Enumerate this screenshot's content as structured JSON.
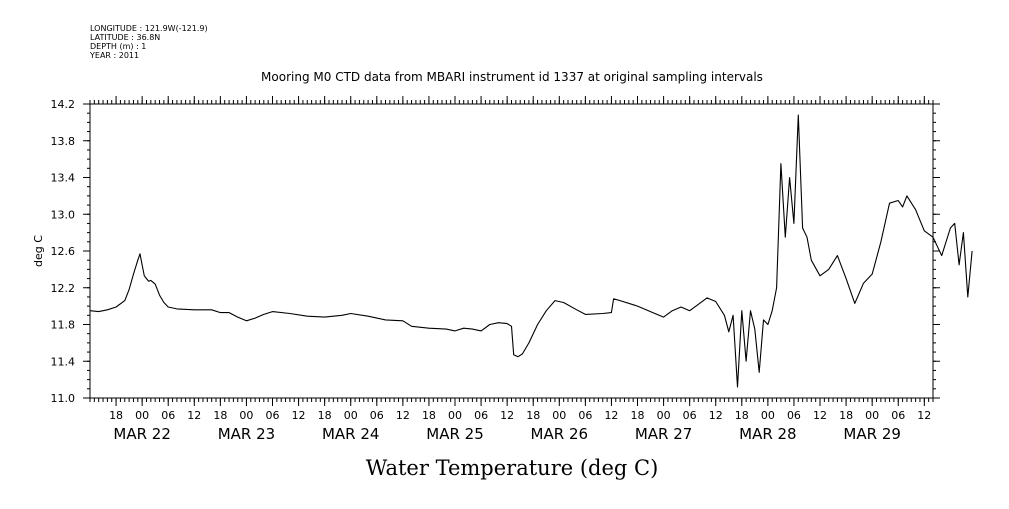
{
  "header": {
    "meta_lines": [
      "LONGITUDE : 121.9W(-121.9)",
      "LATITUDE : 36.8N",
      "DEPTH (m) : 1",
      "YEAR : 2011"
    ],
    "title": "Mooring M0 CTD data from MBARI instrument id 1337 at original sampling intervals"
  },
  "chart_data": {
    "type": "line",
    "title": "Mooring M0 CTD data from MBARI instrument id 1337 at original sampling intervals",
    "xlabel": "Water Temperature (deg C)",
    "ylabel": "deg C",
    "x_unit": "date-hour (2011-03)",
    "xlim": [
      "2011-03-21T12:00",
      "2011-03-29T14:00"
    ],
    "ylim": [
      11.0,
      14.2
    ],
    "y_ticks": [
      "11.0",
      "11.4",
      "11.8",
      "12.2",
      "12.6",
      "13.0",
      "13.4",
      "13.8",
      "14.2"
    ],
    "x_hour_ticks": [
      {
        "t": "2011-03-21T18:00",
        "label": "18"
      },
      {
        "t": "2011-03-22T00:00",
        "label": "00"
      },
      {
        "t": "2011-03-22T06:00",
        "label": "06"
      },
      {
        "t": "2011-03-22T12:00",
        "label": "12"
      },
      {
        "t": "2011-03-22T18:00",
        "label": "18"
      },
      {
        "t": "2011-03-23T00:00",
        "label": "00"
      },
      {
        "t": "2011-03-23T06:00",
        "label": "06"
      },
      {
        "t": "2011-03-23T12:00",
        "label": "12"
      },
      {
        "t": "2011-03-23T18:00",
        "label": "18"
      },
      {
        "t": "2011-03-24T00:00",
        "label": "00"
      },
      {
        "t": "2011-03-24T06:00",
        "label": "06"
      },
      {
        "t": "2011-03-24T12:00",
        "label": "12"
      },
      {
        "t": "2011-03-24T18:00",
        "label": "18"
      },
      {
        "t": "2011-03-25T00:00",
        "label": "00"
      },
      {
        "t": "2011-03-25T06:00",
        "label": "06"
      },
      {
        "t": "2011-03-25T12:00",
        "label": "12"
      },
      {
        "t": "2011-03-25T18:00",
        "label": "18"
      },
      {
        "t": "2011-03-26T00:00",
        "label": "00"
      },
      {
        "t": "2011-03-26T06:00",
        "label": "06"
      },
      {
        "t": "2011-03-26T12:00",
        "label": "12"
      },
      {
        "t": "2011-03-26T18:00",
        "label": "18"
      },
      {
        "t": "2011-03-27T00:00",
        "label": "00"
      },
      {
        "t": "2011-03-27T06:00",
        "label": "06"
      },
      {
        "t": "2011-03-27T12:00",
        "label": "12"
      },
      {
        "t": "2011-03-27T18:00",
        "label": "18"
      },
      {
        "t": "2011-03-28T00:00",
        "label": "00"
      },
      {
        "t": "2011-03-28T06:00",
        "label": "06"
      },
      {
        "t": "2011-03-28T12:00",
        "label": "12"
      },
      {
        "t": "2011-03-28T18:00",
        "label": "18"
      },
      {
        "t": "2011-03-29T00:00",
        "label": "00"
      },
      {
        "t": "2011-03-29T06:00",
        "label": "06"
      },
      {
        "t": "2011-03-29T12:00",
        "label": "12"
      }
    ],
    "x_day_labels": [
      {
        "t": "2011-03-22T00:00",
        "label": "MAR 22"
      },
      {
        "t": "2011-03-23T00:00",
        "label": "MAR 23"
      },
      {
        "t": "2011-03-24T00:00",
        "label": "MAR 24"
      },
      {
        "t": "2011-03-25T00:00",
        "label": "MAR 25"
      },
      {
        "t": "2011-03-26T00:00",
        "label": "MAR 26"
      },
      {
        "t": "2011-03-27T00:00",
        "label": "MAR 27"
      },
      {
        "t": "2011-03-28T00:00",
        "label": "MAR 28"
      },
      {
        "t": "2011-03-29T00:00",
        "label": "MAR 29"
      }
    ],
    "series": [
      {
        "color": "#000000",
        "points": [
          [
            "2011-03-21T12:00",
            11.95
          ],
          [
            "2011-03-21T14:00",
            11.94
          ],
          [
            "2011-03-21T16:00",
            11.96
          ],
          [
            "2011-03-21T18:00",
            11.99
          ],
          [
            "2011-03-21T20:00",
            12.06
          ],
          [
            "2011-03-21T21:00",
            12.18
          ],
          [
            "2011-03-21T22:00",
            12.35
          ],
          [
            "2011-03-21T23:00",
            12.5
          ],
          [
            "2011-03-21T23:30",
            12.57
          ],
          [
            "2011-03-22T00:00",
            12.45
          ],
          [
            "2011-03-22T00:30",
            12.33
          ],
          [
            "2011-03-22T01:00",
            12.3
          ],
          [
            "2011-03-22T01:30",
            12.27
          ],
          [
            "2011-03-22T02:00",
            12.28
          ],
          [
            "2011-03-22T03:00",
            12.24
          ],
          [
            "2011-03-22T04:00",
            12.12
          ],
          [
            "2011-03-22T05:00",
            12.04
          ],
          [
            "2011-03-22T06:00",
            11.99
          ],
          [
            "2011-03-22T08:00",
            11.97
          ],
          [
            "2011-03-22T12:00",
            11.96
          ],
          [
            "2011-03-22T16:00",
            11.96
          ],
          [
            "2011-03-22T18:00",
            11.93
          ],
          [
            "2011-03-22T20:00",
            11.93
          ],
          [
            "2011-03-22T22:00",
            11.88
          ],
          [
            "2011-03-23T00:00",
            11.84
          ],
          [
            "2011-03-23T02:00",
            11.87
          ],
          [
            "2011-03-23T04:00",
            11.91
          ],
          [
            "2011-03-23T06:00",
            11.94
          ],
          [
            "2011-03-23T10:00",
            11.92
          ],
          [
            "2011-03-23T14:00",
            11.89
          ],
          [
            "2011-03-23T18:00",
            11.88
          ],
          [
            "2011-03-23T22:00",
            11.9
          ],
          [
            "2011-03-24T00:00",
            11.92
          ],
          [
            "2011-03-24T04:00",
            11.89
          ],
          [
            "2011-03-24T08:00",
            11.85
          ],
          [
            "2011-03-24T12:00",
            11.84
          ],
          [
            "2011-03-24T14:00",
            11.78
          ],
          [
            "2011-03-24T18:00",
            11.76
          ],
          [
            "2011-03-24T22:00",
            11.75
          ],
          [
            "2011-03-25T00:00",
            11.73
          ],
          [
            "2011-03-25T02:00",
            11.76
          ],
          [
            "2011-03-25T04:00",
            11.75
          ],
          [
            "2011-03-25T06:00",
            11.73
          ],
          [
            "2011-03-25T08:00",
            11.8
          ],
          [
            "2011-03-25T10:00",
            11.82
          ],
          [
            "2011-03-25T12:00",
            11.81
          ],
          [
            "2011-03-25T13:00",
            11.78
          ],
          [
            "2011-03-25T13:30",
            11.47
          ],
          [
            "2011-03-25T14:30",
            11.45
          ],
          [
            "2011-03-25T15:30",
            11.48
          ],
          [
            "2011-03-25T17:00",
            11.6
          ],
          [
            "2011-03-25T19:00",
            11.8
          ],
          [
            "2011-03-25T21:00",
            11.95
          ],
          [
            "2011-03-25T23:00",
            12.06
          ],
          [
            "2011-03-26T01:00",
            12.04
          ],
          [
            "2011-03-26T04:00",
            11.96
          ],
          [
            "2011-03-26T06:00",
            11.91
          ],
          [
            "2011-03-26T10:00",
            11.92
          ],
          [
            "2011-03-26T12:00",
            11.93
          ],
          [
            "2011-03-26T12:30",
            12.08
          ],
          [
            "2011-03-26T14:00",
            12.06
          ],
          [
            "2011-03-26T18:00",
            12.0
          ],
          [
            "2011-03-26T22:00",
            11.92
          ],
          [
            "2011-03-27T00:00",
            11.88
          ],
          [
            "2011-03-27T02:00",
            11.95
          ],
          [
            "2011-03-27T04:00",
            11.99
          ],
          [
            "2011-03-27T06:00",
            11.95
          ],
          [
            "2011-03-27T08:00",
            12.02
          ],
          [
            "2011-03-27T10:00",
            12.09
          ],
          [
            "2011-03-27T12:00",
            12.05
          ],
          [
            "2011-03-27T14:00",
            11.9
          ],
          [
            "2011-03-27T15:00",
            11.72
          ],
          [
            "2011-03-27T16:00",
            11.9
          ],
          [
            "2011-03-27T17:00",
            11.12
          ],
          [
            "2011-03-27T18:00",
            11.95
          ],
          [
            "2011-03-27T19:00",
            11.4
          ],
          [
            "2011-03-27T20:00",
            11.95
          ],
          [
            "2011-03-27T21:00",
            11.75
          ],
          [
            "2011-03-27T22:00",
            11.28
          ],
          [
            "2011-03-27T23:00",
            11.85
          ],
          [
            "2011-03-28T00:00",
            11.8
          ],
          [
            "2011-03-28T01:00",
            11.95
          ],
          [
            "2011-03-28T02:00",
            12.2
          ],
          [
            "2011-03-28T03:00",
            13.55
          ],
          [
            "2011-03-28T04:00",
            12.75
          ],
          [
            "2011-03-28T05:00",
            13.4
          ],
          [
            "2011-03-28T06:00",
            12.9
          ],
          [
            "2011-03-28T07:00",
            14.08
          ],
          [
            "2011-03-28T08:00",
            12.85
          ],
          [
            "2011-03-28T09:00",
            12.75
          ],
          [
            "2011-03-28T10:00",
            12.5
          ],
          [
            "2011-03-28T12:00",
            12.33
          ],
          [
            "2011-03-28T14:00",
            12.4
          ],
          [
            "2011-03-28T16:00",
            12.55
          ],
          [
            "2011-03-28T18:00",
            12.3
          ],
          [
            "2011-03-28T20:00",
            12.03
          ],
          [
            "2011-03-28T22:00",
            12.25
          ],
          [
            "2011-03-29T00:00",
            12.35
          ],
          [
            "2011-03-29T02:00",
            12.7
          ],
          [
            "2011-03-29T04:00",
            13.12
          ],
          [
            "2011-03-29T06:00",
            13.15
          ],
          [
            "2011-03-29T07:00",
            13.08
          ],
          [
            "2011-03-29T08:00",
            13.2
          ],
          [
            "2011-03-29T10:00",
            13.05
          ],
          [
            "2011-03-29T12:00",
            12.82
          ],
          [
            "2011-03-29T14:00",
            12.75
          ],
          [
            "2011-03-29T16:00",
            12.55
          ],
          [
            "2011-03-29T18:00",
            12.85
          ],
          [
            "2011-03-29T19:00",
            12.9
          ],
          [
            "2011-03-29T20:00",
            12.45
          ],
          [
            "2011-03-29T21:00",
            12.8
          ],
          [
            "2011-03-29T22:00",
            12.1
          ],
          [
            "2011-03-29T23:00",
            12.6
          ]
        ]
      }
    ],
    "grid": false,
    "legend": "none"
  }
}
